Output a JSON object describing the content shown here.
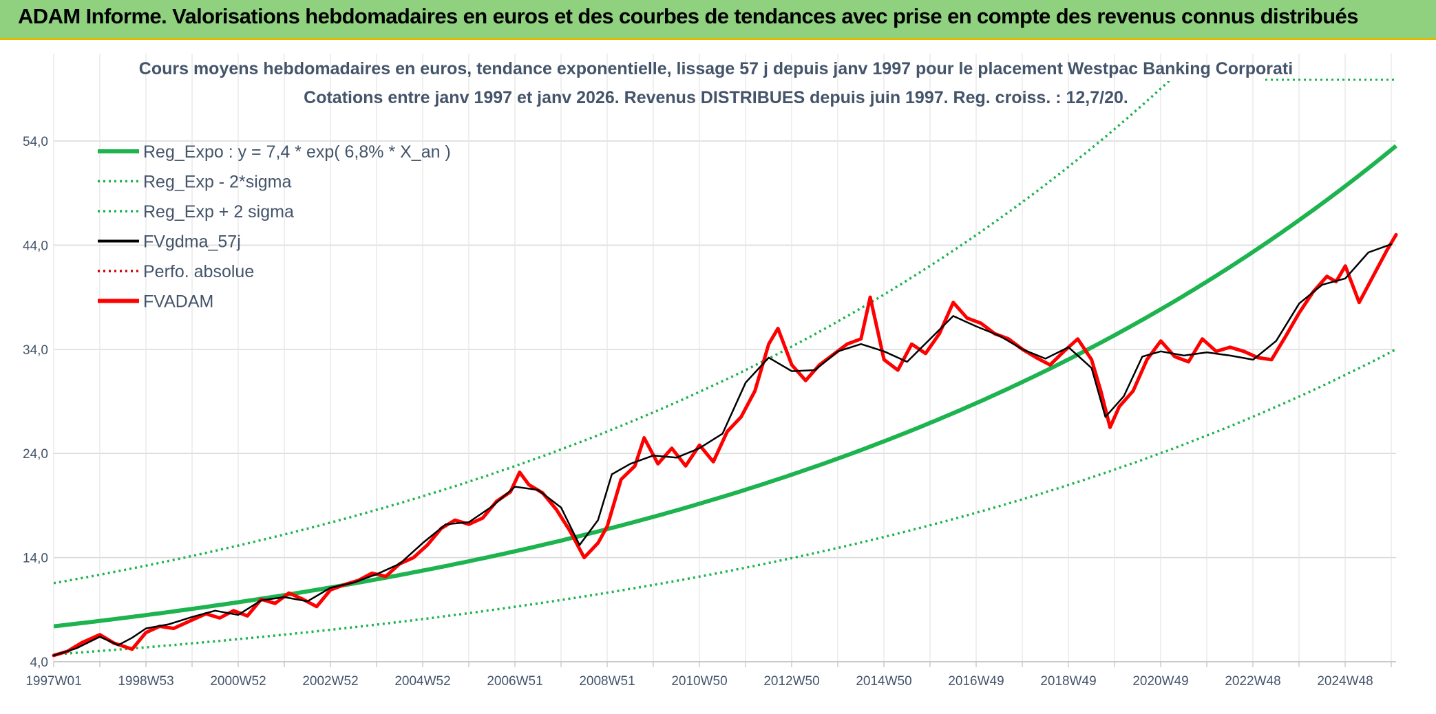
{
  "header": {
    "title": "ADAM Informe. Valorisations hebdomadaires en euros et des courbes de tendances avec prise en compte des revenus connus distribués"
  },
  "chart_data": {
    "type": "line",
    "title_line1": "Cours moyens hebdomadaires en euros, tendance exponentielle, lissage 57 j depuis janv 1997 pour le placement Westpac Banking Corporati",
    "title_line2": "Cotations entre janv 1997 et janv 2026. Revenus DISTRIBUES depuis juin 1997. Reg. croiss. : 12,7/20.",
    "xlabel": "",
    "ylabel": "",
    "x_ticks": [
      "1997W01",
      "1998W53",
      "2000W52",
      "2002W52",
      "2004W52",
      "2006W51",
      "2008W51",
      "2010W50",
      "2012W50",
      "2014W50",
      "2016W49",
      "2018W49",
      "2020W49",
      "2022W48",
      "2024W48"
    ],
    "y_ticks": [
      "4,0",
      "14,0",
      "24,0",
      "34,0",
      "44,0",
      "54,0"
    ],
    "xlim": [
      1997.0,
      2026.1
    ],
    "ylim": [
      4,
      54
    ],
    "grid": true,
    "legend_position": "top-left",
    "colors": {
      "reg": "#1db34f",
      "fvgdma": "#000000",
      "perfo": "#cc0000",
      "fvadam": "#ff0000"
    },
    "regression": {
      "a": 7.4,
      "rate": 0.068,
      "x0": 1997.0
    },
    "series": [
      {
        "name": "Reg_Expo : y = 7,4 * exp( 6,8% *  X_an )",
        "style": "solid-thick",
        "color": "#1db34f",
        "factor": 1.0
      },
      {
        "name": "Reg_Exp - 2*sigma",
        "style": "dotted",
        "color": "#1db34f",
        "factor": 0.635
      },
      {
        "name": "Reg_Exp + 2 sigma",
        "style": "dotted",
        "color": "#1db34f",
        "factor": 1.56
      },
      {
        "name": "FVgdma_57j",
        "style": "solid",
        "color": "#000000",
        "x": [
          1997.0,
          1997.5,
          1998.0,
          1998.4,
          1998.7,
          1999.0,
          1999.5,
          2000.0,
          2000.5,
          2001.0,
          2001.5,
          2002.0,
          2002.5,
          2003.0,
          2003.5,
          2004.0,
          2004.5,
          2005.0,
          2005.5,
          2006.0,
          2006.5,
          2007.0,
          2007.5,
          2008.0,
          2008.4,
          2008.8,
          2009.1,
          2009.5,
          2010.0,
          2010.5,
          2011.0,
          2011.5,
          2012.0,
          2012.5,
          2013.0,
          2013.5,
          2014.0,
          2014.5,
          2015.0,
          2015.5,
          2016.0,
          2016.5,
          2017.0,
          2017.5,
          2018.0,
          2018.5,
          2019.0,
          2019.5,
          2019.8,
          2020.2,
          2020.6,
          2021.0,
          2021.5,
          2022.0,
          2022.5,
          2023.0,
          2023.5,
          2024.0,
          2024.5,
          2025.0,
          2025.5,
          2026.0
        ],
        "y": [
          4.6,
          5.3,
          6.4,
          5.6,
          6.3,
          7.2,
          7.6,
          8.3,
          8.9,
          8.5,
          9.9,
          10.2,
          9.8,
          11.1,
          11.6,
          12.4,
          13.4,
          15.4,
          17.2,
          17.4,
          18.9,
          20.8,
          20.5,
          18.8,
          15.2,
          17.6,
          22.0,
          23.0,
          23.8,
          23.6,
          24.5,
          25.9,
          30.8,
          33.2,
          31.9,
          32.0,
          33.8,
          34.5,
          33.8,
          32.8,
          35.0,
          37.2,
          36.2,
          35.3,
          34.0,
          33.1,
          34.2,
          32.2,
          27.5,
          29.5,
          33.3,
          33.8,
          33.4,
          33.7,
          33.4,
          33.0,
          34.8,
          38.4,
          40.2,
          40.8,
          43.3,
          44.1
        ]
      },
      {
        "name": "Perfo. absolue",
        "style": "dotted",
        "color": "#cc0000"
      },
      {
        "name": "FVADAM",
        "style": "solid-thick",
        "color": "#ff0000",
        "x": [
          1997.0,
          1997.3,
          1997.6,
          1998.0,
          1998.3,
          1998.7,
          1999.0,
          1999.3,
          1999.6,
          2000.0,
          2000.3,
          2000.6,
          2000.9,
          2001.2,
          2001.5,
          2001.8,
          2002.1,
          2002.4,
          2002.7,
          2003.0,
          2003.3,
          2003.6,
          2003.9,
          2004.2,
          2004.5,
          2004.8,
          2005.1,
          2005.4,
          2005.7,
          2006.0,
          2006.3,
          2006.6,
          2006.9,
          2007.1,
          2007.3,
          2007.6,
          2007.9,
          2008.2,
          2008.5,
          2008.8,
          2009.0,
          2009.3,
          2009.6,
          2009.8,
          2010.1,
          2010.4,
          2010.7,
          2011.0,
          2011.3,
          2011.6,
          2011.9,
          2012.2,
          2012.5,
          2012.7,
          2013.0,
          2013.3,
          2013.6,
          2013.9,
          2014.2,
          2014.5,
          2014.7,
          2015.0,
          2015.3,
          2015.6,
          2015.9,
          2016.2,
          2016.5,
          2016.8,
          2017.1,
          2017.4,
          2017.7,
          2018.0,
          2018.3,
          2018.6,
          2018.9,
          2019.2,
          2019.5,
          2019.7,
          2019.9,
          2020.1,
          2020.4,
          2020.7,
          2021.0,
          2021.3,
          2021.6,
          2021.9,
          2022.2,
          2022.5,
          2022.8,
          2023.1,
          2023.4,
          2023.7,
          2024.0,
          2024.3,
          2024.6,
          2024.8,
          2025.0,
          2025.3,
          2025.6,
          2025.9,
          2026.1
        ],
        "y": [
          4.6,
          5.0,
          5.8,
          6.6,
          5.8,
          5.2,
          6.8,
          7.4,
          7.2,
          8.0,
          8.6,
          8.2,
          8.9,
          8.4,
          10.0,
          9.6,
          10.6,
          10.0,
          9.3,
          10.9,
          11.4,
          11.8,
          12.5,
          12.2,
          13.4,
          14.0,
          15.2,
          16.8,
          17.6,
          17.2,
          17.8,
          19.4,
          20.3,
          22.2,
          21.0,
          20.2,
          18.6,
          16.5,
          14.0,
          15.4,
          17.0,
          21.5,
          22.8,
          25.5,
          23.0,
          24.5,
          22.8,
          24.8,
          23.2,
          26.1,
          27.5,
          30.0,
          34.5,
          36.0,
          32.5,
          31.0,
          32.5,
          33.5,
          34.5,
          35.0,
          39.0,
          33.0,
          32.0,
          34.5,
          33.6,
          35.5,
          38.5,
          37.0,
          36.5,
          35.5,
          35.0,
          34.0,
          33.2,
          32.5,
          33.8,
          35.0,
          33.0,
          30.0,
          26.5,
          28.5,
          30.0,
          33.0,
          34.8,
          33.3,
          32.8,
          35.0,
          33.8,
          34.2,
          33.8,
          33.2,
          33.0,
          35.2,
          37.5,
          39.5,
          41.0,
          40.5,
          42.0,
          38.5,
          41.0,
          43.5,
          45.0
        ]
      }
    ]
  }
}
